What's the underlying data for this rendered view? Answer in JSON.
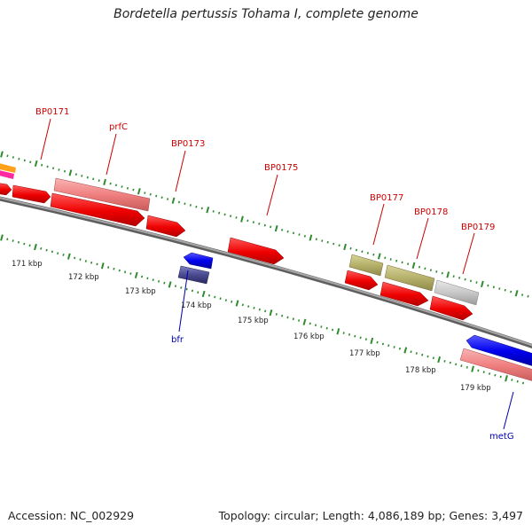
{
  "title": "Bordetella pertussis Tohama I, complete genome",
  "footer": {
    "accession": "Accession: NC_002929",
    "summary": "Topology: circular; Length: 4,086,189 bp; Genes: 3,497"
  },
  "colors": {
    "backbone": "#8a8a8a",
    "tick": "#2e8b2e",
    "upper_label": "#cc0000",
    "lower_label": "#0000aa",
    "kbp_label": "#222222"
  },
  "kbp_labels": [
    "171 kbp",
    "172 kbp",
    "173 kbp",
    "174 kbp",
    "175 kbp",
    "176 kbp",
    "177 kbp",
    "178 kbp",
    "179 kbp"
  ],
  "gene_labels_upper": [
    "BP0171",
    "prfC",
    "BP0173",
    "BP0175",
    "BP0177",
    "BP0178",
    "BP0179"
  ],
  "gene_labels_lower": [
    "bfr",
    "metG"
  ]
}
